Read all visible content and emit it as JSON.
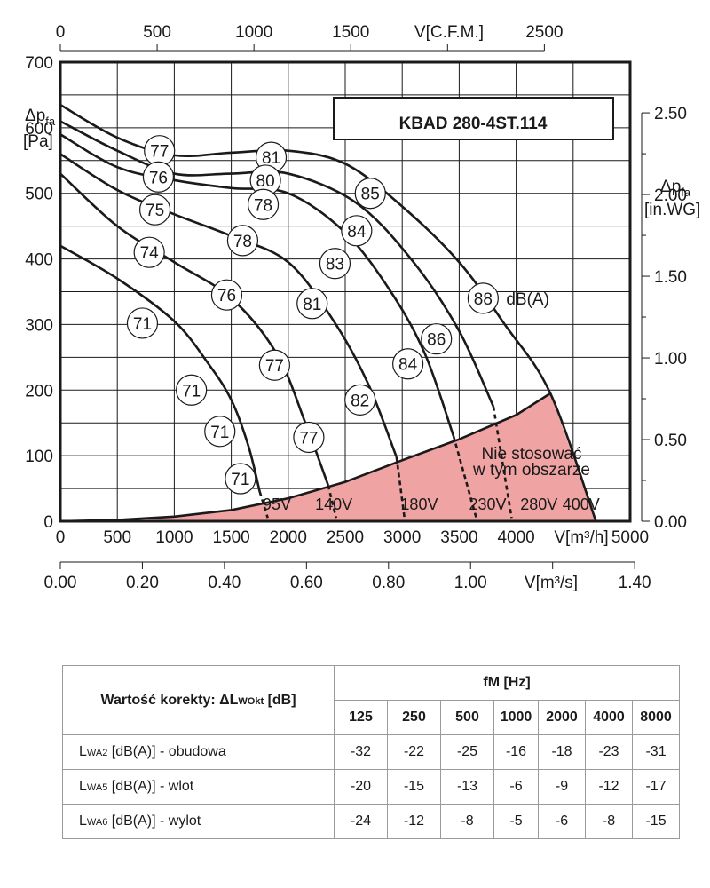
{
  "chart_data": {
    "type": "line",
    "title": "KBAD 280-4ST.114",
    "y_left_label": [
      "Δp",
      "fa",
      "[Pa]"
    ],
    "y_right_label": [
      "Δp",
      "fa",
      "[in.WG]"
    ],
    "x_top_label": "V[C.F.M.]",
    "x_bottom_label": "V[m³/h]",
    "x_bottom2_label": "V[m³/s]",
    "y_ticks": [
      0,
      100,
      200,
      300,
      400,
      500,
      600,
      700
    ],
    "ylim": [
      0,
      700
    ],
    "xlim": [
      0,
      5000
    ],
    "x_ticks": [
      0,
      500,
      1000,
      1500,
      2000,
      2500,
      3000,
      3500,
      4000,
      5000
    ],
    "x_ticks_labels": [
      "0",
      "500",
      "1000",
      "1500",
      "2000",
      "2500",
      "3000",
      "3500",
      "4000",
      "5000"
    ],
    "top_ticks": [
      "0",
      "500",
      "1000",
      "1500",
      "2500"
    ],
    "top_tick_cfm": [
      0,
      500,
      1000,
      1500,
      2500
    ],
    "m3s_ticks": [
      "0.00",
      "0.20",
      "0.40",
      "0.60",
      "0.80",
      "1.00",
      "1.40"
    ],
    "m3s_tick_values": [
      0,
      0.2,
      0.4,
      0.6,
      0.8,
      1.0,
      1.4
    ],
    "right_ticks": [
      "0.00",
      "0.50",
      "1.00",
      "1.50",
      "2.00",
      "2.50"
    ],
    "right_tick_values": [
      0,
      0.5,
      1.0,
      1.5,
      2.0,
      2.5
    ],
    "unit_label": "dB(A)",
    "region_label": [
      "Nie stosować",
      "w tym obszarze"
    ],
    "system_curve": [
      [
        0,
        0
      ],
      [
        500,
        2
      ],
      [
        1000,
        7
      ],
      [
        1500,
        17
      ],
      [
        2000,
        35
      ],
      [
        2500,
        60
      ],
      [
        3000,
        93
      ],
      [
        3500,
        125
      ],
      [
        4000,
        162
      ],
      [
        4300,
        195
      ]
    ],
    "limit_point": [
      4700,
      0
    ],
    "series": [
      {
        "name": "95V",
        "points": [
          [
            0,
            420
          ],
          [
            500,
            370
          ],
          [
            1000,
            305
          ],
          [
            1300,
            240
          ],
          [
            1500,
            185
          ],
          [
            1650,
            115
          ],
          [
            1750,
            45
          ]
        ],
        "dashed": [
          [
            1750,
            45
          ],
          [
            1820,
            5
          ]
        ]
      },
      {
        "name": "140V",
        "points": [
          [
            0,
            530
          ],
          [
            500,
            450
          ],
          [
            1000,
            395
          ],
          [
            1500,
            340
          ],
          [
            1900,
            255
          ],
          [
            2150,
            150
          ],
          [
            2350,
            55
          ]
        ],
        "dashed": [
          [
            2350,
            55
          ],
          [
            2420,
            5
          ]
        ]
      },
      {
        "name": "180V",
        "points": [
          [
            0,
            560
          ],
          [
            500,
            505
          ],
          [
            1000,
            468
          ],
          [
            1500,
            435
          ],
          [
            2000,
            395
          ],
          [
            2400,
            305
          ],
          [
            2700,
            210
          ],
          [
            2950,
            98
          ]
        ],
        "dashed": [
          [
            2950,
            98
          ],
          [
            3020,
            5
          ]
        ]
      },
      {
        "name": "230V",
        "points": [
          [
            0,
            590
          ],
          [
            500,
            540
          ],
          [
            1000,
            520
          ],
          [
            1500,
            508
          ],
          [
            2000,
            500
          ],
          [
            2500,
            440
          ],
          [
            2900,
            350
          ],
          [
            3200,
            255
          ],
          [
            3450,
            130
          ]
        ],
        "dashed": [
          [
            3450,
            130
          ],
          [
            3650,
            5
          ]
        ]
      },
      {
        "name": "280V",
        "points": [
          [
            0,
            610
          ],
          [
            500,
            565
          ],
          [
            1000,
            530
          ],
          [
            1500,
            530
          ],
          [
            2000,
            530
          ],
          [
            2600,
            485
          ],
          [
            3100,
            395
          ],
          [
            3500,
            290
          ],
          [
            3800,
            175
          ]
        ],
        "dashed": [
          [
            3800,
            175
          ],
          [
            3960,
            5
          ]
        ]
      },
      {
        "name": "400V",
        "points": [
          [
            0,
            635
          ],
          [
            500,
            585
          ],
          [
            1000,
            558
          ],
          [
            1500,
            562
          ],
          [
            2000,
            565
          ],
          [
            2500,
            545
          ],
          [
            3000,
            480
          ],
          [
            3500,
            395
          ],
          [
            3900,
            300
          ],
          [
            4300,
            195
          ],
          [
            4700,
            0
          ]
        ],
        "dashed": []
      }
    ],
    "voltage_labels": [
      {
        "text": "95V",
        "x": 1900,
        "y": 15
      },
      {
        "text": "140V",
        "x": 2400,
        "y": 15
      },
      {
        "text": "180V",
        "x": 3150,
        "y": 15
      },
      {
        "text": "230V",
        "x": 3750,
        "y": 15
      },
      {
        "text": "280V",
        "x": 4200,
        "y": 15
      },
      {
        "text": "400V",
        "x": 4570,
        "y": 15
      }
    ],
    "sound_labels": [
      {
        "text": "77",
        "x": 870,
        "y": 565
      },
      {
        "text": "81",
        "x": 1850,
        "y": 555
      },
      {
        "text": "76",
        "x": 860,
        "y": 525
      },
      {
        "text": "80",
        "x": 1800,
        "y": 520
      },
      {
        "text": "75",
        "x": 830,
        "y": 475
      },
      {
        "text": "78",
        "x": 1780,
        "y": 483
      },
      {
        "text": "85",
        "x": 2720,
        "y": 500
      },
      {
        "text": "74",
        "x": 780,
        "y": 410
      },
      {
        "text": "78",
        "x": 1600,
        "y": 428
      },
      {
        "text": "84",
        "x": 2600,
        "y": 443
      },
      {
        "text": "83",
        "x": 2410,
        "y": 393
      },
      {
        "text": "76",
        "x": 1460,
        "y": 345
      },
      {
        "text": "81",
        "x": 2210,
        "y": 332
      },
      {
        "text": "88",
        "x": 3710,
        "y": 340
      },
      {
        "text": "71",
        "x": 720,
        "y": 302
      },
      {
        "text": "86",
        "x": 3300,
        "y": 278
      },
      {
        "text": "77",
        "x": 1880,
        "y": 238
      },
      {
        "text": "84",
        "x": 3050,
        "y": 240
      },
      {
        "text": "71",
        "x": 1150,
        "y": 200
      },
      {
        "text": "82",
        "x": 2630,
        "y": 185
      },
      {
        "text": "71",
        "x": 1400,
        "y": 137
      },
      {
        "text": "77",
        "x": 2180,
        "y": 128
      },
      {
        "text": "71",
        "x": 1580,
        "y": 65
      }
    ]
  },
  "correction_table": {
    "header_label": "Wartość korekty:  ΔL",
    "header_sub": "WOkt",
    "header_unit": " [dB]",
    "freq_label": "fM [Hz]",
    "freqs": [
      "125",
      "250",
      "500",
      "1000",
      "2000",
      "4000",
      "8000"
    ],
    "rows": [
      {
        "prefix": "L",
        "sub": "WA2",
        "rest": " [dB(A)] - obudowa",
        "values": [
          "-32",
          "-22",
          "-25",
          "-16",
          "-18",
          "-23",
          "-31"
        ]
      },
      {
        "prefix": "L",
        "sub": "WA5",
        "rest": " [dB(A)] - wlot",
        "values": [
          "-20",
          "-15",
          "-13",
          "-6",
          "-9",
          "-12",
          "-17"
        ]
      },
      {
        "prefix": "L",
        "sub": "WA6",
        "rest": " [dB(A)] - wylot",
        "values": [
          "-24",
          "-12",
          "-8",
          "-5",
          "-6",
          "-8",
          "-15"
        ]
      }
    ]
  }
}
